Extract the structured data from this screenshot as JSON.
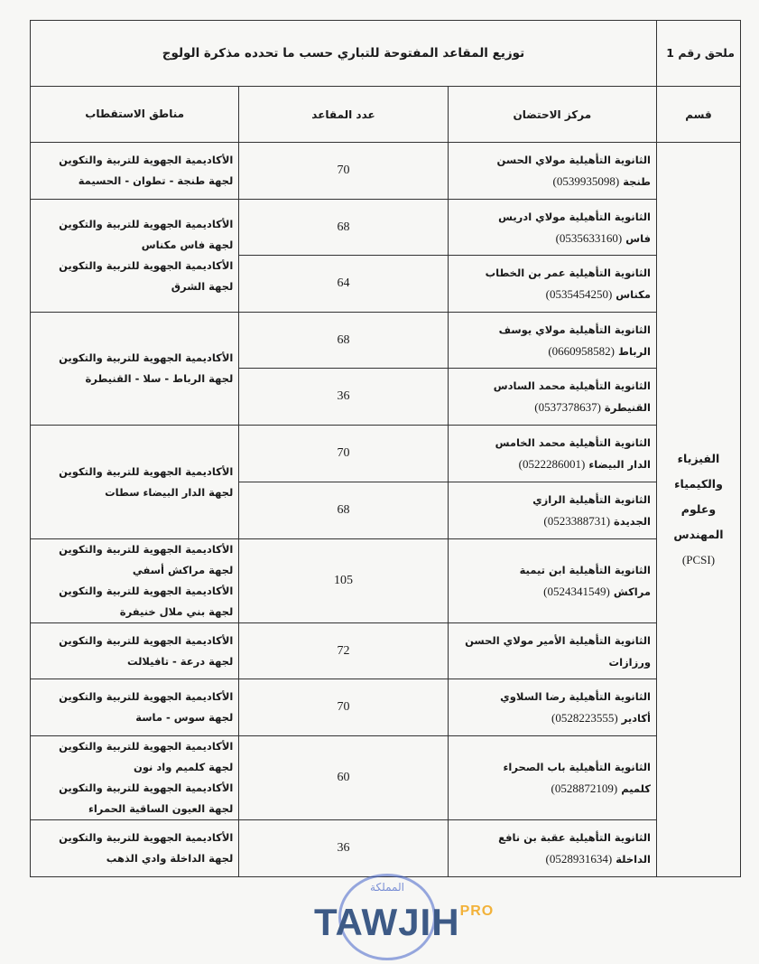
{
  "header": {
    "annex": "ملحق رقم 1",
    "title": "توزيع المقاعد المفتوحة للتباري حسب ما تحدده مذكرة الولوج"
  },
  "columns": {
    "section": "قسم",
    "center": "مركز الاحتضان",
    "seats": "عدد المقاعد",
    "regions": "مناطق الاستقطاب"
  },
  "section": {
    "name": "الفيزياء والكيمياء وعلوم المهندس",
    "code": "(PCSI)"
  },
  "rows": [
    {
      "school": "الثانوية التأهيلية مولاي الحسن",
      "city": "طنجة",
      "phone": "(0539935098)",
      "seats": "70"
    },
    {
      "school": "الثانوية التأهيلية مولاي ادريس",
      "city": "فاس",
      "phone": "(0535633160)",
      "seats": "68"
    },
    {
      "school": "الثانوية التأهيلية عمر بن الخطاب",
      "city": "مكناس",
      "phone": "(0535454250)",
      "seats": "64"
    },
    {
      "school": "الثانوية التأهيلية مولاي يوسف",
      "city": "الرباط",
      "phone": "(0660958582)",
      "seats": "68"
    },
    {
      "school": "الثانوية التأهيلية محمد السادس",
      "city": "القنيطرة",
      "phone": "(0537378637)",
      "seats": "36"
    },
    {
      "school": "الثانوية التأهيلية محمد الخامس",
      "city": "الدار البيضاء",
      "phone": "(0522286001)",
      "seats": "70"
    },
    {
      "school": "الثانوية التأهيلية الرازي",
      "city": "الجديدة",
      "phone": "(0523388731)",
      "seats": "68"
    },
    {
      "school": "الثانوية التأهيلية ابن تيمية",
      "city": "مراكش",
      "phone": "(0524341549)",
      "seats": "105"
    },
    {
      "school": "الثانوية التأهيلية الأمير مولاي الحسن",
      "city": "ورزازات",
      "phone": "",
      "seats": "72"
    },
    {
      "school": "الثانوية التأهيلية رضا السلاوي",
      "city": "أكادير",
      "phone": "(0528223555)",
      "seats": "70"
    },
    {
      "school": "الثانوية التأهيلية باب الصحراء",
      "city": "كلميم",
      "phone": "(0528872109)",
      "seats": "60"
    },
    {
      "school": "الثانوية التأهيلية عقبة بن نافع",
      "city": "الداخلة",
      "phone": "(0528931634)",
      "seats": "36"
    }
  ],
  "regions": [
    [
      "الأكاديمية الجهوية للتربية والتكوين لجهة طنجة - تطوان - الحسيمة"
    ],
    [
      "الأكاديمية الجهوية للتربية والتكوين لجهة فاس مكناس",
      "الأكاديمية الجهوية للتربية والتكوين لجهة الشرق"
    ],
    [
      "الأكاديمية الجهوية للتربية والتكوين لجهة الرباط - سلا - القنيطرة"
    ],
    [
      "الأكاديمية الجهوية للتربية والتكوين لجهة الدار البيضاء سطات"
    ],
    [
      "الأكاديمية الجهوية للتربية والتكوين لجهة مراكش أسفي",
      "الأكاديمية الجهوية للتربية والتكوين لجهة بني ملال خنيفرة"
    ],
    [
      "الأكاديمية الجهوية للتربية والتكوين لجهة درعة - تافيلالت"
    ],
    [
      "الأكاديمية الجهوية للتربية والتكوين لجهة سوس - ماسة"
    ],
    [
      "الأكاديمية الجهوية للتربية والتكوين لجهة كلميم واد نون",
      "الأكاديمية الجهوية للتربية والتكوين لجهة العيون الساقية الحمراء"
    ],
    [
      "الأكاديمية الجهوية للتربية والتكوين لجهة الداخلة وادي الذهب"
    ]
  ],
  "stamp": {
    "text": "المملكة"
  },
  "watermark": {
    "brand": "TAWJIH",
    "suffix": "PRO",
    "brand_color": "#3d5a86",
    "suffix_color": "#f2b23a"
  }
}
